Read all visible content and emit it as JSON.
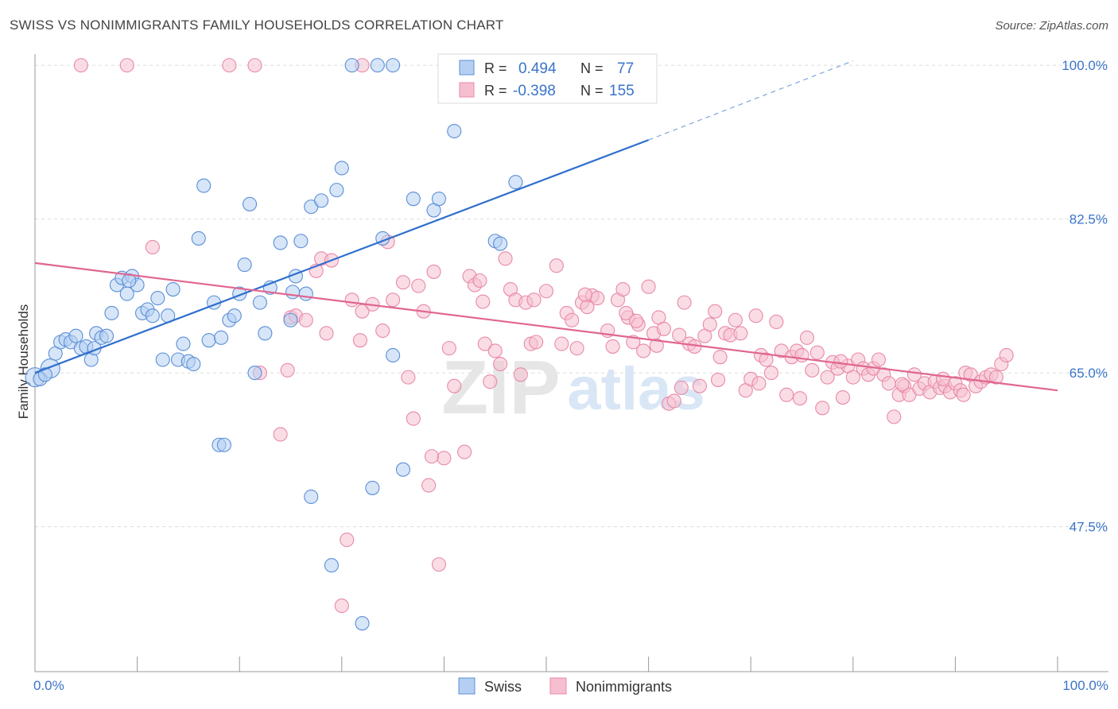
{
  "title": "SWISS VS NONIMMIGRANTS FAMILY HOUSEHOLDS CORRELATION CHART",
  "source": "Source: ZipAtlas.com",
  "watermark": {
    "zip": "ZIP",
    "atlas": "atlas"
  },
  "colors": {
    "swiss": "#5b8fd6",
    "swiss_fill": "#b5cff2",
    "nonimm": "#e88aa8",
    "nonimm_fill": "#f6bfd0",
    "blue_text": "#3a74c8",
    "pink_line": "#e0668f",
    "blue_line": "#2f6fce"
  },
  "legend_box": {
    "swiss": {
      "r_label": "R =",
      "r_value": "0.494",
      "n_label": "N =",
      "n_value": "77"
    },
    "nonimm": {
      "r_label": "R =",
      "r_value": "-0.398",
      "n_label": "N =",
      "n_value": "155"
    }
  },
  "bottom_legend": {
    "swiss": "Swiss",
    "nonimm": "Nonimmigrants"
  },
  "chart_data": {
    "type": "scatter",
    "xlabel": "",
    "ylabel": "Family Households",
    "xlim": [
      0,
      100
    ],
    "ylim": [
      31,
      102
    ],
    "x_tick_labels": {
      "left": "0.0%",
      "right": "100.0%"
    },
    "y_ticks": [
      {
        "value": 100.0,
        "label": "100.0%"
      },
      {
        "value": 82.5,
        "label": "82.5%"
      },
      {
        "value": 65.0,
        "label": "65.0%"
      },
      {
        "value": 47.5,
        "label": "47.5%"
      }
    ],
    "series": [
      {
        "name": "Swiss",
        "R": 0.494,
        "N": 77,
        "trend": {
          "x0": 0,
          "y0": 65.0,
          "x1": 60,
          "y1": 91.5,
          "dash_to_x": 80,
          "dash_to_y": 100.5
        },
        "points": [
          [
            0,
            64.5
          ],
          [
            1.5,
            65.5
          ],
          [
            2,
            67.2
          ],
          [
            2.5,
            68.5
          ],
          [
            3,
            68.8
          ],
          [
            3.5,
            68.5
          ],
          [
            4,
            69.2
          ],
          [
            4.5,
            67.8
          ],
          [
            5,
            68
          ],
          [
            5.5,
            66.5
          ],
          [
            6,
            69.5
          ],
          [
            6.5,
            69
          ],
          [
            7,
            69.2
          ],
          [
            7.5,
            71.8
          ],
          [
            8,
            75
          ],
          [
            8.5,
            75.8
          ],
          [
            9,
            74
          ],
          [
            9.5,
            76
          ],
          [
            10,
            75
          ],
          [
            10.5,
            71.8
          ],
          [
            11,
            72.2
          ],
          [
            11.5,
            71.5
          ],
          [
            12,
            73.5
          ],
          [
            12.5,
            66.5
          ],
          [
            13,
            71.5
          ],
          [
            13.5,
            74.5
          ],
          [
            14,
            66.5
          ],
          [
            14.5,
            68.3
          ],
          [
            15,
            66.3
          ],
          [
            15.5,
            66
          ],
          [
            16,
            80.3
          ],
          [
            16.5,
            86.3
          ],
          [
            17,
            68.7
          ],
          [
            17.5,
            73
          ],
          [
            18,
            56.8
          ],
          [
            18.5,
            56.8
          ],
          [
            19,
            71
          ],
          [
            19.5,
            71.5
          ],
          [
            20,
            74
          ],
          [
            20.5,
            77.3
          ],
          [
            21,
            84.2
          ],
          [
            21.5,
            65
          ],
          [
            22,
            73
          ],
          [
            22.5,
            69.5
          ],
          [
            23,
            74.7
          ],
          [
            24,
            79.8
          ],
          [
            25,
            71
          ],
          [
            25.5,
            76
          ],
          [
            26,
            80
          ],
          [
            26.5,
            74
          ],
          [
            27,
            83.9
          ],
          [
            27,
            50.9
          ],
          [
            28,
            84.6
          ],
          [
            29,
            43.1
          ],
          [
            29.5,
            85.8
          ],
          [
            30,
            88.3
          ],
          [
            31,
            100
          ],
          [
            32,
            36.5
          ],
          [
            33,
            51.9
          ],
          [
            34,
            80.3
          ],
          [
            35,
            67
          ],
          [
            35,
            100
          ],
          [
            36,
            54
          ],
          [
            37,
            84.8
          ],
          [
            39,
            83.5
          ],
          [
            39.5,
            84.8
          ],
          [
            41,
            92.5
          ],
          [
            45,
            80
          ],
          [
            45.5,
            79.7
          ],
          [
            47,
            86.7
          ],
          [
            0.5,
            64.3
          ],
          [
            1,
            64.8
          ],
          [
            5.8,
            67.8
          ],
          [
            9.2,
            75.5
          ],
          [
            18.2,
            69
          ],
          [
            25.2,
            74.2
          ],
          [
            33.5,
            100
          ]
        ]
      },
      {
        "name": "Nonimmigrants",
        "R": -0.398,
        "N": 155,
        "trend": {
          "x0": 0,
          "y0": 77.5,
          "x1": 100,
          "y1": 63.0
        },
        "points": [
          [
            4.5,
            100
          ],
          [
            9,
            100
          ],
          [
            19,
            100
          ],
          [
            21.5,
            100
          ],
          [
            32,
            100
          ],
          [
            11.5,
            79.3
          ],
          [
            22,
            65
          ],
          [
            24,
            58
          ],
          [
            25,
            71.3
          ],
          [
            24.7,
            65.3
          ],
          [
            25.5,
            71.5
          ],
          [
            26.5,
            71
          ],
          [
            27.5,
            76.6
          ],
          [
            28.5,
            69.5
          ],
          [
            28,
            78
          ],
          [
            29,
            77.8
          ],
          [
            30,
            38.5
          ],
          [
            30.5,
            46
          ],
          [
            31,
            73.3
          ],
          [
            32,
            72
          ],
          [
            33,
            72.8
          ],
          [
            34,
            69.8
          ],
          [
            34.5,
            79.9
          ],
          [
            35,
            73.3
          ],
          [
            36,
            75.3
          ],
          [
            36.5,
            64.5
          ],
          [
            37,
            59.8
          ],
          [
            37.5,
            74.9
          ],
          [
            38,
            72
          ],
          [
            38.5,
            52.2
          ],
          [
            39,
            76.5
          ],
          [
            39.5,
            43.2
          ],
          [
            40,
            55.3
          ],
          [
            40.5,
            67.8
          ],
          [
            41,
            63.5
          ],
          [
            42,
            56
          ],
          [
            42.5,
            76
          ],
          [
            43,
            75
          ],
          [
            43.5,
            75.5
          ],
          [
            44,
            68.3
          ],
          [
            44.5,
            64
          ],
          [
            45,
            67.5
          ],
          [
            45.5,
            66
          ],
          [
            46,
            78
          ],
          [
            46.5,
            74.5
          ],
          [
            47,
            73.3
          ],
          [
            47.5,
            64.8
          ],
          [
            48,
            73
          ],
          [
            48.5,
            68.3
          ],
          [
            49,
            68.5
          ],
          [
            50,
            74.3
          ],
          [
            51,
            77.2
          ],
          [
            51.5,
            68.3
          ],
          [
            52,
            71.8
          ],
          [
            52.5,
            71
          ],
          [
            53,
            67.8
          ],
          [
            53.5,
            73
          ],
          [
            54,
            72.5
          ],
          [
            54.5,
            73.8
          ],
          [
            55,
            73.5
          ],
          [
            56,
            69.8
          ],
          [
            56.5,
            68
          ],
          [
            57,
            73.3
          ],
          [
            57.5,
            74.5
          ],
          [
            58,
            71.3
          ],
          [
            58.5,
            68.5
          ],
          [
            59,
            70.5
          ],
          [
            59.5,
            67.5
          ],
          [
            60,
            74.8
          ],
          [
            60.5,
            69.5
          ],
          [
            61,
            71.3
          ],
          [
            61.5,
            70
          ],
          [
            62,
            61.5
          ],
          [
            62.5,
            61.8
          ],
          [
            63,
            69.3
          ],
          [
            63.5,
            73
          ],
          [
            64,
            68.3
          ],
          [
            64.5,
            68
          ],
          [
            65,
            63.5
          ],
          [
            65.5,
            69.2
          ],
          [
            66,
            70.5
          ],
          [
            66.5,
            72
          ],
          [
            67,
            66.8
          ],
          [
            67.5,
            69.5
          ],
          [
            68,
            69.3
          ],
          [
            68.5,
            71
          ],
          [
            69,
            69.5
          ],
          [
            69.5,
            63
          ],
          [
            70,
            64.3
          ],
          [
            70.5,
            71.5
          ],
          [
            71,
            67
          ],
          [
            71.5,
            66.5
          ],
          [
            72,
            65
          ],
          [
            72.5,
            70.8
          ],
          [
            73,
            67.5
          ],
          [
            73.5,
            62.5
          ],
          [
            74,
            66.8
          ],
          [
            74.5,
            67.5
          ],
          [
            75,
            67
          ],
          [
            75.5,
            69
          ],
          [
            76,
            65.3
          ],
          [
            76.5,
            67.3
          ],
          [
            77,
            61
          ],
          [
            77.5,
            64.5
          ],
          [
            78,
            66.2
          ],
          [
            78.5,
            65.5
          ],
          [
            79,
            62.2
          ],
          [
            79.5,
            65.8
          ],
          [
            80,
            64.5
          ],
          [
            80.5,
            66.5
          ],
          [
            81,
            65.5
          ],
          [
            81.5,
            64.8
          ],
          [
            82,
            65.5
          ],
          [
            82.5,
            66.5
          ],
          [
            83,
            64.8
          ],
          [
            83.5,
            63.8
          ],
          [
            84,
            60
          ],
          [
            84.5,
            62.5
          ],
          [
            85,
            63.5
          ],
          [
            85.5,
            62.5
          ],
          [
            86,
            64.8
          ],
          [
            86.5,
            63.2
          ],
          [
            87,
            63.8
          ],
          [
            87.5,
            62.8
          ],
          [
            88,
            64
          ],
          [
            88.5,
            63.3
          ],
          [
            89,
            63.5
          ],
          [
            89.5,
            62.8
          ],
          [
            90,
            63.8
          ],
          [
            90.5,
            63
          ],
          [
            91,
            65
          ],
          [
            91.5,
            64.8
          ],
          [
            92,
            63.5
          ],
          [
            92.5,
            64
          ],
          [
            93,
            64.5
          ],
          [
            93.5,
            64.8
          ],
          [
            94,
            64.5
          ],
          [
            94.5,
            66
          ],
          [
            95,
            67
          ],
          [
            90.8,
            62.5
          ],
          [
            57.8,
            71.8
          ],
          [
            63.2,
            63.3
          ],
          [
            66.8,
            64.2
          ],
          [
            70.8,
            63.8
          ],
          [
            74.8,
            62.1
          ],
          [
            78.8,
            66.3
          ],
          [
            84.8,
            63.7
          ],
          [
            88.8,
            64.3
          ],
          [
            31.8,
            68.7
          ],
          [
            38.8,
            55.5
          ],
          [
            43.8,
            73.1
          ],
          [
            48.8,
            73.3
          ],
          [
            53.8,
            73.9
          ],
          [
            58.8,
            70.9
          ],
          [
            60.8,
            68.1
          ]
        ]
      }
    ]
  }
}
